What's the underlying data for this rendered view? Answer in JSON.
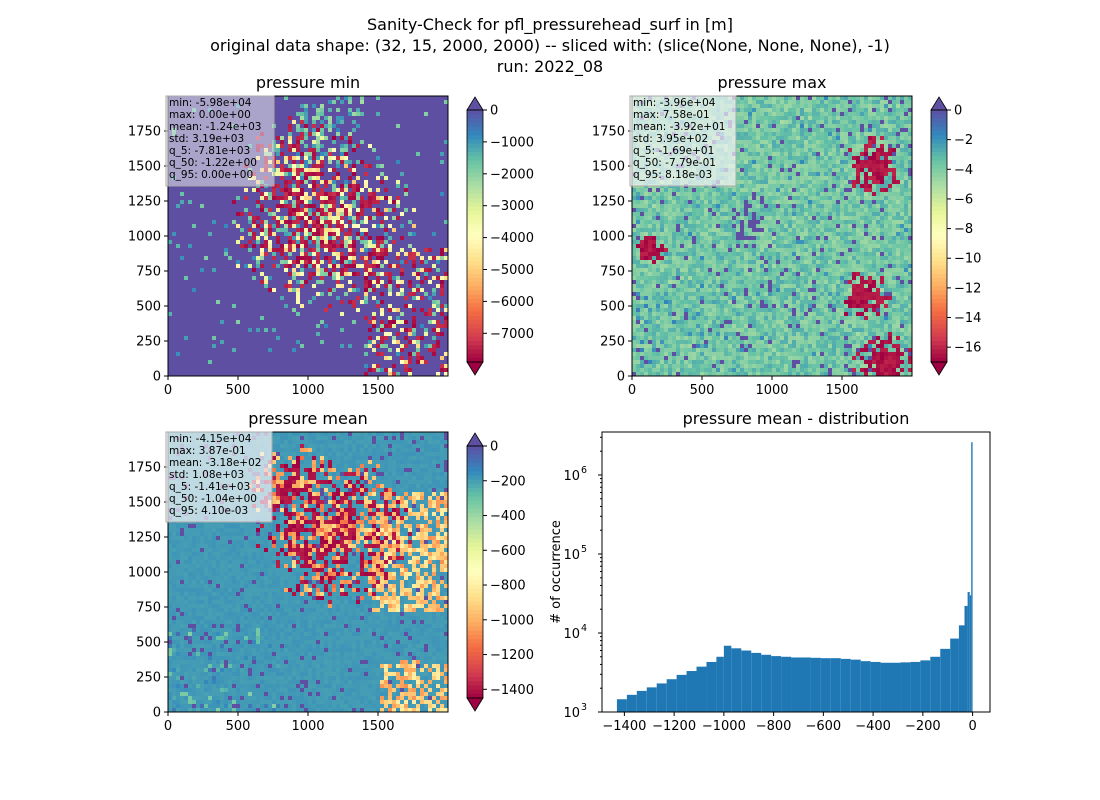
{
  "figure": {
    "title_lines": [
      "Sanity-Check for pfl_pressurehead_surf in [m]",
      "original data shape: (32, 15, 2000, 2000) -- sliced with: (slice(None, None, None), -1)",
      "run: 2022_08"
    ]
  },
  "chart_data": [
    {
      "type": "heatmap",
      "title": "pressure min",
      "xlim": [
        0,
        2000
      ],
      "ylim": [
        0,
        2000
      ],
      "xticks": [
        0,
        500,
        1000,
        1500
      ],
      "yticks": [
        0,
        250,
        500,
        750,
        1000,
        1250,
        1500,
        1750
      ],
      "colormap": "Spectral",
      "colorbar": {
        "min": -7900,
        "max": 0,
        "ticks": [
          0,
          -1000,
          -2000,
          -3000,
          -4000,
          -5000,
          -6000,
          -7000
        ],
        "extend": "both"
      },
      "stats": [
        "min: -5.98e+04",
        "max: 0.00e+00",
        "mean: -1.24e+03",
        "std: 3.19e+03",
        "q_5: -7.81e+03",
        "q_50: -1.22e+00",
        "q_95: 0.00e+00"
      ]
    },
    {
      "type": "heatmap",
      "title": "pressure max",
      "xlim": [
        0,
        2000
      ],
      "ylim": [
        0,
        2000
      ],
      "xticks": [
        0,
        500,
        1000,
        1500
      ],
      "yticks": [
        0,
        250,
        500,
        750,
        1000,
        1250,
        1500,
        1750
      ],
      "colormap": "Spectral",
      "colorbar": {
        "min": -17,
        "max": 0,
        "ticks": [
          0,
          -2,
          -4,
          -6,
          -8,
          -10,
          -12,
          -14,
          -16
        ],
        "extend": "both"
      },
      "stats": [
        "min: -3.96e+04",
        "max: 7.58e-01",
        "mean: -3.92e+01",
        "std: 3.95e+02",
        "q_5: -1.69e+01",
        "q_50: -7.79e-01",
        "q_95: 8.18e-03"
      ]
    },
    {
      "type": "heatmap",
      "title": "pressure mean",
      "xlim": [
        0,
        2000
      ],
      "ylim": [
        0,
        2000
      ],
      "xticks": [
        0,
        500,
        1000,
        1500
      ],
      "yticks": [
        0,
        250,
        500,
        750,
        1000,
        1250,
        1500,
        1750
      ],
      "colormap": "Spectral",
      "colorbar": {
        "min": -1450,
        "max": 0,
        "ticks": [
          0,
          -200,
          -400,
          -600,
          -800,
          -1000,
          -1200,
          -1400
        ],
        "extend": "both"
      },
      "stats": [
        "min: -4.15e+04",
        "max: 3.87e-01",
        "mean: -3.18e+02",
        "std: 1.08e+03",
        "q_5: -1.41e+03",
        "q_50: -1.04e+00",
        "q_95: 4.10e-03"
      ]
    },
    {
      "type": "bar",
      "title": "pressure mean - distribution",
      "ylabel": "# of occurrence",
      "yscale": "log",
      "xlim": [
        -1490,
        70
      ],
      "ylim": [
        1000,
        3500000
      ],
      "xticks": [
        -1400,
        -1200,
        -1000,
        -800,
        -600,
        -400,
        -200,
        0
      ],
      "ytick_labels": [
        {
          "base": "10",
          "exp": "3",
          "value": 1000
        },
        {
          "base": "10",
          "exp": "4",
          "value": 10000
        },
        {
          "base": "10",
          "exp": "5",
          "value": 100000
        },
        {
          "base": "10",
          "exp": "6",
          "value": 1000000
        }
      ],
      "color": "#1f77b4",
      "x": [
        -1410,
        -1370,
        -1330,
        -1290,
        -1250,
        -1210,
        -1170,
        -1130,
        -1090,
        -1050,
        -1010,
        -990,
        -950,
        -910,
        -870,
        -830,
        -790,
        -750,
        -710,
        -670,
        -630,
        -590,
        -550,
        -510,
        -470,
        -430,
        -390,
        -350,
        -310,
        -270,
        -230,
        -190,
        -150,
        -110,
        -70,
        -40,
        -25,
        -15,
        -8,
        -3
      ],
      "values": [
        1450,
        1650,
        1850,
        2050,
        2300,
        2600,
        2950,
        3300,
        3750,
        4300,
        5000,
        6900,
        6400,
        6000,
        5600,
        5300,
        5100,
        5000,
        4900,
        4900,
        4850,
        4800,
        4800,
        4700,
        4600,
        4400,
        4300,
        4200,
        4200,
        4250,
        4300,
        4500,
        5000,
        6300,
        8500,
        12500,
        22000,
        33000,
        30000,
        2600000
      ]
    }
  ]
}
